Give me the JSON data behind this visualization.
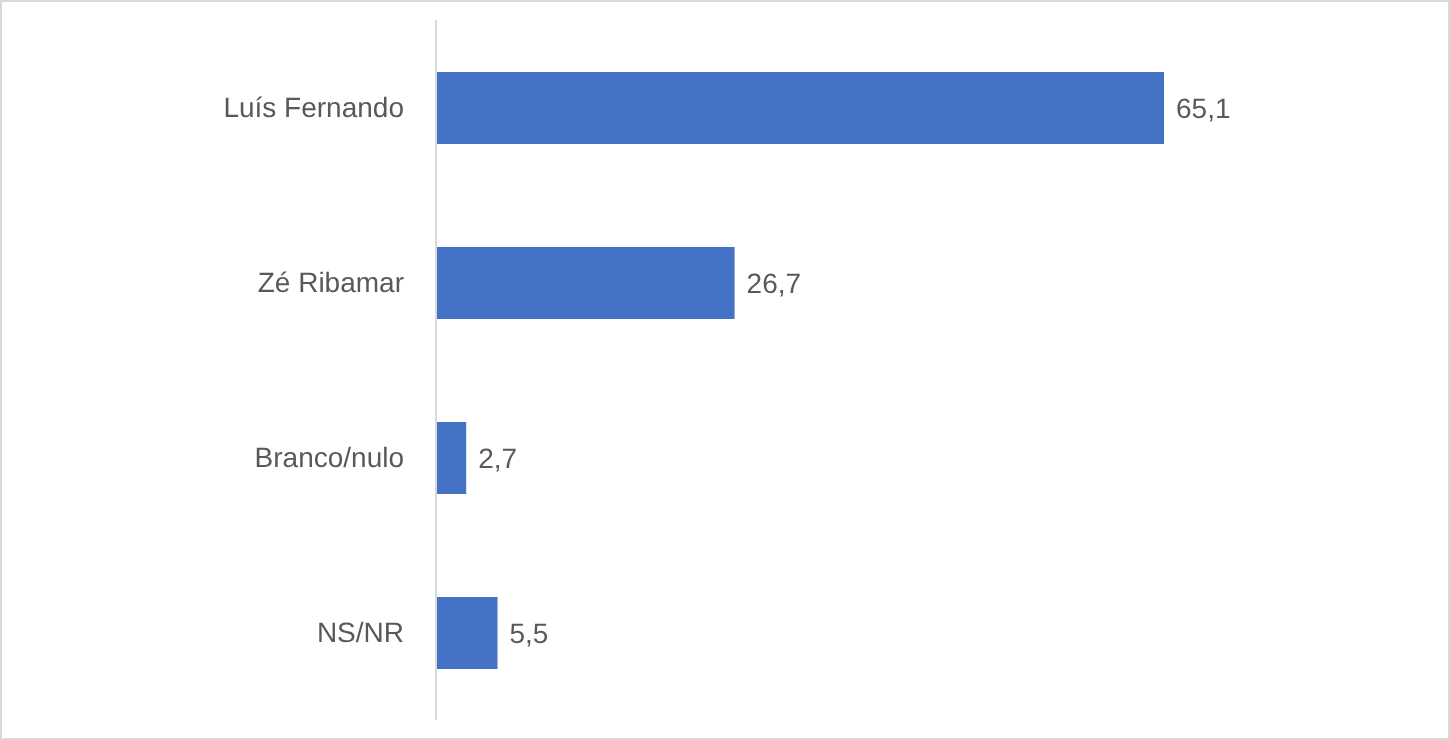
{
  "chart_data": {
    "type": "bar",
    "orientation": "horizontal",
    "categories": [
      "Luís Fernando",
      "Zé Ribamar",
      "Branco/nulo",
      "NS/NR"
    ],
    "values": [
      65.1,
      26.7,
      2.7,
      5.5
    ],
    "color": "#4472c4",
    "value_labels": [
      "65,1",
      "26,7",
      "2,7",
      "5,5"
    ],
    "tick_labels": "y",
    "grid": false
  }
}
